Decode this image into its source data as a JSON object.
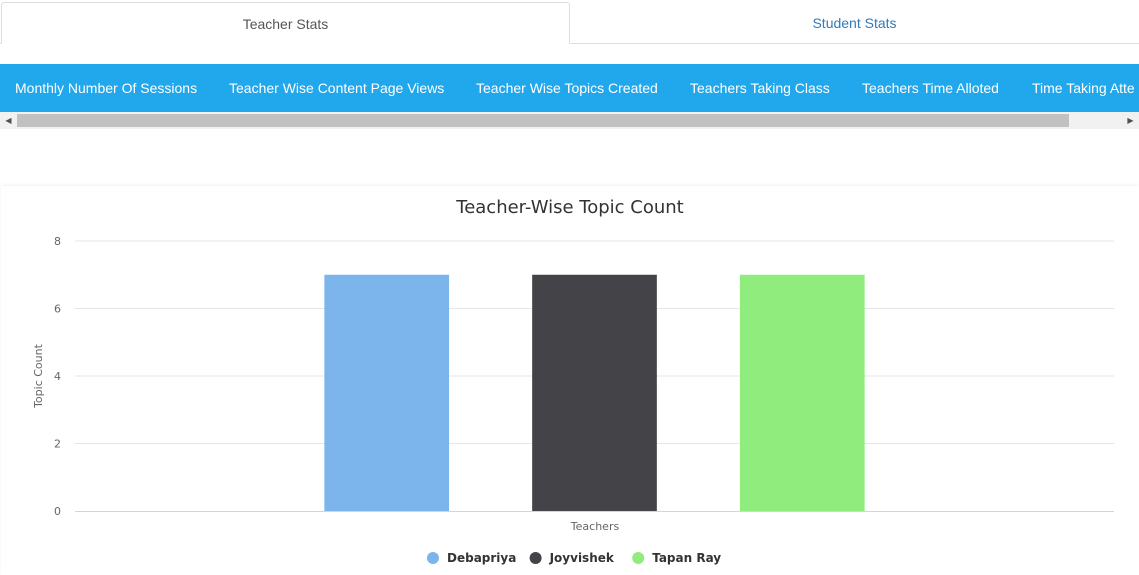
{
  "tabs": [
    {
      "label": "Teacher Stats",
      "active": true
    },
    {
      "label": "Student Stats",
      "active": false
    }
  ],
  "subnav": {
    "items": [
      "Monthly Number Of Sessions",
      "Teacher Wise Content Page Views",
      "Teacher Wise Topics Created",
      "Teachers Taking Class",
      "Teachers Time Alloted",
      "Time Taking Atte"
    ]
  },
  "colors": {
    "subnav_bg": "#21a7ec",
    "active_tab_text": "#555555",
    "inactive_tab_text": "#337ab7"
  },
  "chart_data": {
    "type": "bar",
    "title": "Teacher-Wise Topic Count",
    "xlabel": "Teachers",
    "ylabel": "Topic Count",
    "ylim": [
      0,
      8
    ],
    "yticks": [
      0,
      2,
      4,
      6,
      8
    ],
    "grid": true,
    "legend_position": "bottom-center",
    "series": [
      {
        "name": "Debapriya",
        "values": [
          7
        ],
        "color": "#7cb5ec"
      },
      {
        "name": "Joyvishek",
        "values": [
          7
        ],
        "color": "#434348"
      },
      {
        "name": "Tapan Ray",
        "values": [
          7
        ],
        "color": "#90ed7d"
      }
    ]
  }
}
